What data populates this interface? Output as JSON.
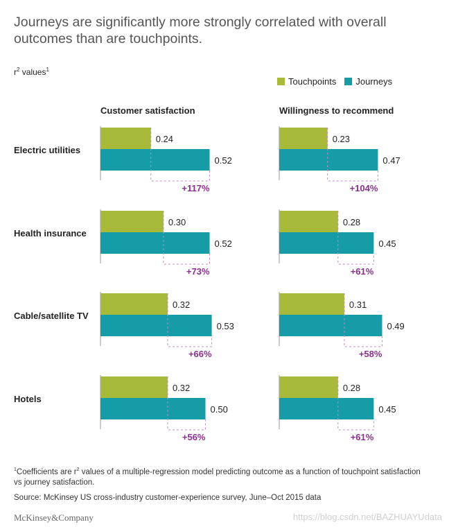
{
  "title": "Journeys are significantly more strongly correlated with overall outcomes than are touchpoints.",
  "subtitle": "r",
  "subtitle_sup": "2",
  "subtitle_rest": " values",
  "subtitle_note": "1",
  "legend": [
    {
      "label": "Touchpoints",
      "color": "#a9b93a"
    },
    {
      "label": "Journeys",
      "color": "#159ca6"
    }
  ],
  "chart_data": {
    "type": "bar",
    "orientation": "horizontal",
    "panels": [
      "Customer satisfaction",
      "Willingness to recommend"
    ],
    "categories": [
      "Electric utilities",
      "Health insurance",
      "Cable/satellite TV",
      "Hotels"
    ],
    "series": [
      {
        "name": "Touchpoints",
        "color": "#a9b93a",
        "values": [
          [
            0.24,
            0.3,
            0.32,
            0.32
          ],
          [
            0.23,
            0.28,
            0.31,
            0.28
          ]
        ]
      },
      {
        "name": "Journeys",
        "color": "#159ca6",
        "values": [
          [
            0.52,
            0.52,
            0.53,
            0.5
          ],
          [
            0.47,
            0.45,
            0.49,
            0.45
          ]
        ]
      }
    ],
    "value_labels": {
      "touchpoints": [
        [
          "0.24",
          "0.30",
          "0.32",
          "0.32"
        ],
        [
          "0.23",
          "0.28",
          "0.31",
          "0.28"
        ]
      ],
      "journeys": [
        [
          "0.52",
          "0.52",
          "0.53",
          "0.50"
        ],
        [
          "0.47",
          "0.45",
          "0.49",
          "0.45"
        ]
      ]
    },
    "deltas": [
      [
        "+117%",
        "+73%",
        "+66%",
        "+56%"
      ],
      [
        "+104%",
        "+61%",
        "+58%",
        "+61%"
      ]
    ],
    "delta_color": "#8b2f8f"
  },
  "footnote": "Coefficients are r",
  "footnote_sup_open": "1",
  "footnote_sup_r": "2",
  "footnote_rest": " values of a multiple-regression model predicting outcome as a function of touchpoint satisfaction vs journey satisfaction.",
  "source": "Source: McKinsey US cross-industry customer-experience survey, June–Oct 2015 data",
  "brand": "McKinsey&Company",
  "watermark": "https://blog.csdn.net/BAZHUAYUdata"
}
